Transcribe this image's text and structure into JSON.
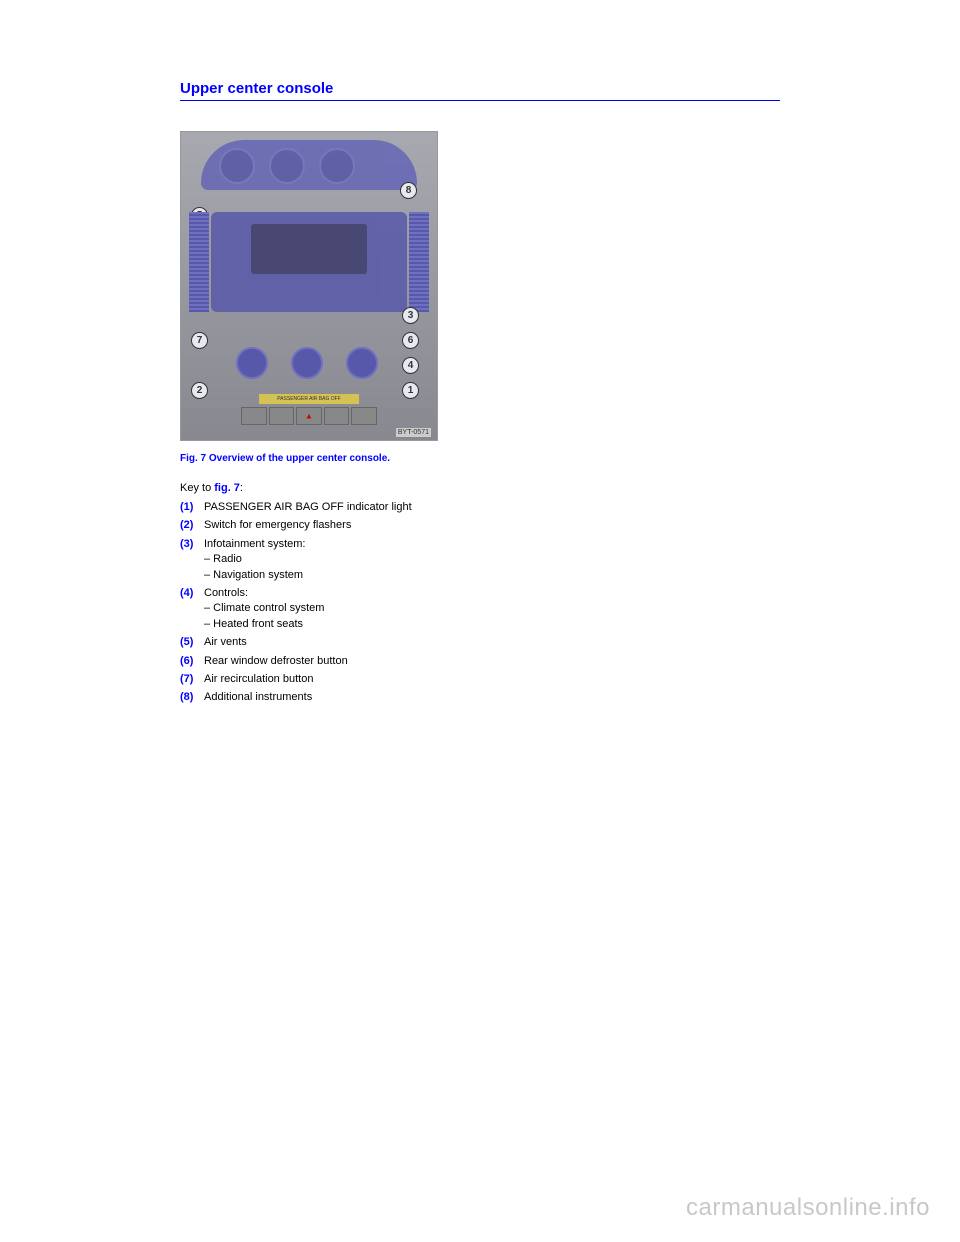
{
  "title": "Upper center console",
  "figure": {
    "caption": "Fig. 7 Overview of the upper center console.",
    "image_label": "BYT-0571",
    "airbag_text": "PASSENGER AIR BAG OFF",
    "callouts": [
      "1",
      "2",
      "3",
      "4",
      "5",
      "6",
      "7",
      "8"
    ]
  },
  "key_intro_prefix": "Key to ",
  "key_intro_ref": "fig. 7",
  "key_intro_suffix": ":",
  "items": [
    {
      "num": "(1)",
      "text": "PASSENGER AIR BAG OFF indicator light"
    },
    {
      "num": "(2)",
      "text": "Switch for emergency flashers"
    },
    {
      "num": "(3)",
      "text": "Infotainment system:\n– Radio\n– Navigation system"
    },
    {
      "num": "(4)",
      "text": "Controls:\n– Climate control system\n– Heated front seats"
    },
    {
      "num": "(5)",
      "text": "Air vents"
    },
    {
      "num": "(6)",
      "text": "Rear window defroster button"
    },
    {
      "num": "(7)",
      "text": "Air recirculation button"
    },
    {
      "num": "(8)",
      "text": "Additional instruments"
    }
  ],
  "watermark": "carmanualsonline.info",
  "colors": {
    "link_blue": "#0000ff",
    "text_black": "#000000",
    "background": "#ffffff",
    "watermark_gray": "#c8c8c8",
    "overlay_blue": "#5858aa"
  }
}
